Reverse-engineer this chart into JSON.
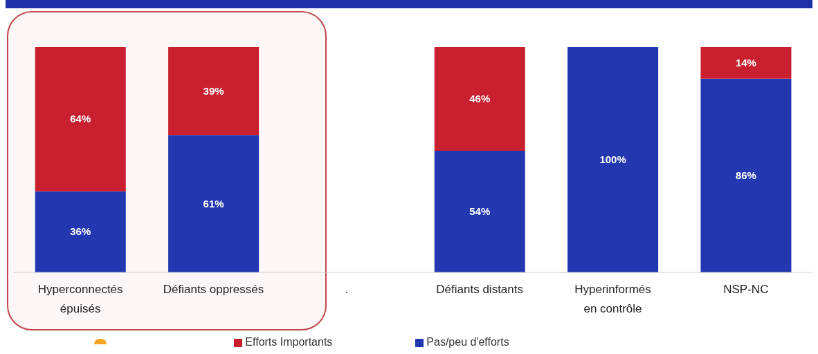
{
  "chart_data": {
    "type": "bar",
    "stacked": true,
    "categories": [
      "Hyperconnectés\népuisés",
      "Défiants oppressés",
      ".",
      "Défiants distants",
      "Hyperinformés\nen contrôle",
      "NSP-NC"
    ],
    "series": [
      {
        "name": "Pas/peu d'efforts",
        "color": "#2338b0",
        "values": [
          36,
          61,
          null,
          54,
          100,
          86
        ],
        "value_labels": [
          "36%",
          "61%",
          null,
          "54%",
          "100%",
          "86%"
        ]
      },
      {
        "name": "Efforts Importants",
        "color": "#c8202e",
        "values": [
          64,
          39,
          null,
          46,
          null,
          14
        ],
        "value_labels": [
          "64%",
          "39%",
          null,
          "46%",
          null,
          "14%"
        ]
      }
    ],
    "legend": "bottom"
  }
}
